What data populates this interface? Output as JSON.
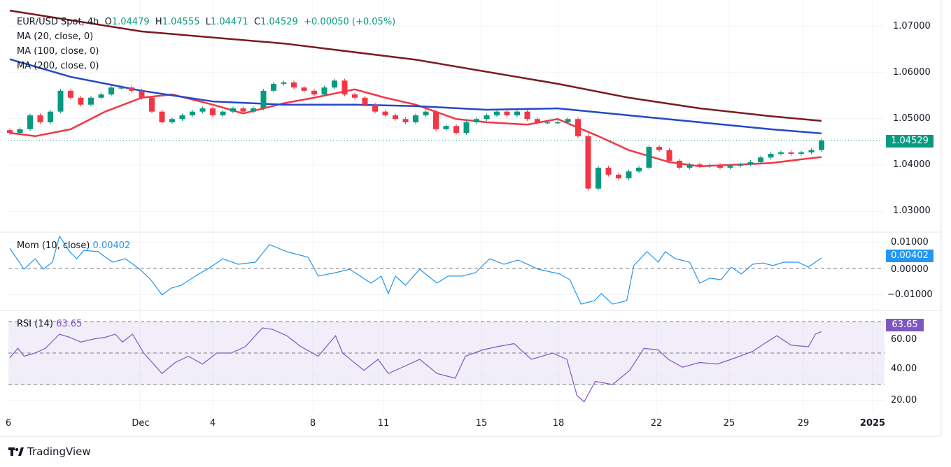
{
  "header": {
    "symbol": "EUR/USD Spot, 4h",
    "open_label": "O",
    "open": "1.04479",
    "high_label": "H",
    "high": "1.04555",
    "low_label": "L",
    "low": "1.04471",
    "close_label": "C",
    "close": "1.04529",
    "change": "+0.00050 (+0.05%)"
  },
  "indicators": {
    "ma20": "MA (20, close, 0)",
    "ma100": "MA (100, close, 0)",
    "ma200": "MA (200, close, 0)",
    "mom_label": "Mom (10, close)",
    "mom_value": "0.00402",
    "rsi_label": "RSI (14)",
    "rsi_value": "63.65"
  },
  "price_axis": [
    "1.07000",
    "1.06000",
    "1.05000",
    "1.04000",
    "1.03000"
  ],
  "price_badge": "1.04529",
  "mom_axis": [
    "0.01000",
    "0.00000",
    "−0.01000"
  ],
  "mom_badge": "0.00402",
  "rsi_axis": [
    "60.00",
    "40.00",
    "20.00"
  ],
  "rsi_badge": "63.65",
  "date_axis": [
    "6",
    "Dec",
    "4",
    "8",
    "11",
    "15",
    "18",
    "22",
    "25",
    "29",
    "2025"
  ],
  "branding": "TradingView",
  "colors": {
    "up": "#089981",
    "down": "#F23645",
    "ma20": "#F23645",
    "ma100": "#2447C9",
    "ma200": "#7B1A1F",
    "mom": "#2196F3",
    "rsi": "#7E57C2"
  },
  "chart_data": [
    {
      "type": "candlestick",
      "title": "EUR/USD Spot, 4h",
      "ylim": [
        1.025,
        1.0735
      ],
      "first_open": 1.0475,
      "closes": [
        1.0469,
        1.0477,
        1.0507,
        1.0492,
        1.0515,
        1.056,
        1.0545,
        1.053,
        1.0545,
        1.0552,
        1.0567,
        1.0567,
        1.056,
        1.0545,
        1.0515,
        1.0492,
        1.0499,
        1.0507,
        1.0515,
        1.0522,
        1.0507,
        1.0515,
        1.0522,
        1.0515,
        1.0522,
        1.056,
        1.0575,
        1.0578,
        1.0567,
        1.056,
        1.0552,
        1.0567,
        1.0582,
        1.0552,
        1.0545,
        1.053,
        1.0515,
        1.0507,
        1.0499,
        1.0492,
        1.0507,
        1.0515,
        1.0477,
        1.0484,
        1.0469,
        1.0492,
        1.0499,
        1.0507,
        1.0515,
        1.0507,
        1.0515,
        1.0499,
        1.0492,
        1.0492,
        1.0492,
        1.0499,
        1.0462,
        1.0349,
        1.0394,
        1.0379,
        1.0371,
        1.0386,
        1.0394,
        1.0439,
        1.0432,
        1.0409,
        1.0394,
        1.0401,
        1.0397,
        1.04,
        1.0394,
        1.0398,
        1.0401,
        1.0406,
        1.0416,
        1.0424,
        1.0427,
        1.0424,
        1.0427,
        1.0432,
        1.04529
      ],
      "series": [
        {
          "name": "MA (20, close, 0)",
          "points": [
            [
              0,
              1.0469
            ],
            [
              2.5,
              1.0462
            ],
            [
              6,
              1.0477
            ],
            [
              9.4,
              1.0515
            ],
            [
              13,
              1.0545
            ],
            [
              16,
              1.0552
            ],
            [
              20,
              1.053
            ],
            [
              23,
              1.0511
            ],
            [
              27,
              1.0533
            ],
            [
              30,
              1.0545
            ],
            [
              34,
              1.0563
            ],
            [
              37,
              1.0545
            ],
            [
              40,
              1.053
            ],
            [
              44,
              1.0499
            ],
            [
              47,
              1.0492
            ],
            [
              51,
              1.0487
            ],
            [
              54,
              1.0499
            ],
            [
              58,
              1.0462
            ],
            [
              61,
              1.0432
            ],
            [
              65,
              1.0406
            ],
            [
              68,
              1.0397
            ],
            [
              72,
              1.0401
            ],
            [
              75,
              1.0404
            ],
            [
              78,
              1.0412
            ],
            [
              80,
              1.0417
            ]
          ]
        },
        {
          "name": "MA (100, close, 0)",
          "points": [
            [
              0,
              1.0628
            ],
            [
              6,
              1.059
            ],
            [
              13,
              1.056
            ],
            [
              20,
              1.0537
            ],
            [
              27,
              1.053
            ],
            [
              34,
              1.053
            ],
            [
              40,
              1.0527
            ],
            [
              47,
              1.0519
            ],
            [
              54,
              1.0522
            ],
            [
              61,
              1.0507
            ],
            [
              68,
              1.0492
            ],
            [
              75,
              1.0477
            ],
            [
              80,
              1.0468
            ]
          ]
        },
        {
          "name": "MA (200, close, 0)",
          "points": [
            [
              0,
              1.0733
            ],
            [
              13,
              1.0688
            ],
            [
              27,
              1.0662
            ],
            [
              40,
              1.0627
            ],
            [
              54,
              1.0575
            ],
            [
              61,
              1.0545
            ],
            [
              68,
              1.0522
            ],
            [
              75,
              1.0505
            ],
            [
              80,
              1.0495
            ]
          ]
        }
      ]
    },
    {
      "type": "line",
      "title": "Mom (10, close)",
      "ylim": [
        -0.0155,
        0.0135
      ],
      "points": [
        [
          0,
          0.0077
        ],
        [
          1.4,
          -0.0003
        ],
        [
          2.5,
          0.0037
        ],
        [
          3.3,
          -0.0003
        ],
        [
          4.2,
          0.0024
        ],
        [
          4.9,
          0.0123
        ],
        [
          5.9,
          0.0064
        ],
        [
          6.6,
          0.0037
        ],
        [
          7.3,
          0.0069
        ],
        [
          8.7,
          0.0064
        ],
        [
          10.1,
          0.0024
        ],
        [
          11.4,
          0.0037
        ],
        [
          12.8,
          -0.0003
        ],
        [
          13.9,
          -0.0043
        ],
        [
          15.0,
          -0.0101
        ],
        [
          15.9,
          -0.0075
        ],
        [
          16.9,
          -0.0064
        ],
        [
          18.3,
          -0.0029
        ],
        [
          19.7,
          0.0003
        ],
        [
          21.0,
          0.0037
        ],
        [
          22.5,
          0.0016
        ],
        [
          24.2,
          0.0024
        ],
        [
          25.6,
          0.0091
        ],
        [
          27.3,
          0.0064
        ],
        [
          29.4,
          0.0043
        ],
        [
          30.4,
          -0.0029
        ],
        [
          32.1,
          -0.0016
        ],
        [
          33.5,
          -0.0003
        ],
        [
          35.6,
          -0.0056
        ],
        [
          36.6,
          -0.0029
        ],
        [
          37.3,
          -0.0096
        ],
        [
          38.0,
          -0.0029
        ],
        [
          39.0,
          -0.0064
        ],
        [
          40.4,
          -0.0003
        ],
        [
          42.1,
          -0.0056
        ],
        [
          43.2,
          -0.0029
        ],
        [
          44.6,
          -0.0029
        ],
        [
          45.9,
          -0.0016
        ],
        [
          47.3,
          0.0037
        ],
        [
          48.7,
          0.0016
        ],
        [
          50.1,
          0.0032
        ],
        [
          52.1,
          -0.0003
        ],
        [
          54.2,
          -0.0021
        ],
        [
          55.2,
          -0.0043
        ],
        [
          56.3,
          -0.0136
        ],
        [
          57.6,
          -0.0123
        ],
        [
          58.3,
          -0.0096
        ],
        [
          59.4,
          -0.0136
        ],
        [
          60.8,
          -0.0123
        ],
        [
          61.5,
          0.0011
        ],
        [
          62.8,
          0.0064
        ],
        [
          63.9,
          0.0024
        ],
        [
          64.6,
          0.0064
        ],
        [
          65.6,
          0.0037
        ],
        [
          67.0,
          0.0024
        ],
        [
          68.0,
          -0.0056
        ],
        [
          69.0,
          -0.0037
        ],
        [
          70.1,
          -0.0043
        ],
        [
          71.1,
          0.0005
        ],
        [
          72.1,
          -0.0021
        ],
        [
          73.2,
          0.0016
        ],
        [
          74.2,
          0.0021
        ],
        [
          75.2,
          0.0011
        ],
        [
          76.3,
          0.0024
        ],
        [
          77.7,
          0.0024
        ],
        [
          78.7,
          0.0005
        ],
        [
          80,
          0.00402
        ]
      ]
    },
    {
      "type": "line",
      "title": "RSI (14)",
      "ylim": [
        15,
        75
      ],
      "bands": [
        30,
        50,
        70
      ],
      "points": [
        [
          0,
          47
        ],
        [
          0.8,
          53
        ],
        [
          1.4,
          48
        ],
        [
          2.5,
          50
        ],
        [
          3.5,
          53
        ],
        [
          4.9,
          62
        ],
        [
          5.9,
          60
        ],
        [
          7.0,
          57
        ],
        [
          8.3,
          59
        ],
        [
          9.4,
          60
        ],
        [
          10.4,
          62
        ],
        [
          11.1,
          57
        ],
        [
          12.1,
          62
        ],
        [
          13.2,
          50
        ],
        [
          15.0,
          37
        ],
        [
          16.3,
          44
        ],
        [
          17.6,
          48
        ],
        [
          19.0,
          43
        ],
        [
          20.4,
          50
        ],
        [
          21.8,
          50
        ],
        [
          23.2,
          54
        ],
        [
          24.9,
          66
        ],
        [
          25.9,
          65
        ],
        [
          27.3,
          61
        ],
        [
          28.7,
          54
        ],
        [
          30.4,
          48
        ],
        [
          32.1,
          61
        ],
        [
          32.8,
          50
        ],
        [
          34.9,
          39
        ],
        [
          36.3,
          46
        ],
        [
          37.3,
          37
        ],
        [
          38.7,
          41
        ],
        [
          40.4,
          46
        ],
        [
          42.1,
          37
        ],
        [
          43.9,
          34
        ],
        [
          44.9,
          48
        ],
        [
          46.6,
          52
        ],
        [
          48.0,
          54
        ],
        [
          49.7,
          56
        ],
        [
          51.4,
          46
        ],
        [
          53.5,
          50
        ],
        [
          54.9,
          46
        ],
        [
          55.9,
          23
        ],
        [
          56.6,
          19
        ],
        [
          57.7,
          32
        ],
        [
          59.4,
          30
        ],
        [
          61.1,
          39
        ],
        [
          62.5,
          53
        ],
        [
          63.9,
          52
        ],
        [
          64.9,
          46
        ],
        [
          66.3,
          41
        ],
        [
          68.0,
          44
        ],
        [
          69.7,
          43
        ],
        [
          71.1,
          46
        ],
        [
          73.2,
          51
        ],
        [
          74.6,
          57
        ],
        [
          75.6,
          61
        ],
        [
          77.0,
          55
        ],
        [
          78.7,
          54
        ],
        [
          79.4,
          62
        ],
        [
          80,
          63.65
        ]
      ]
    }
  ]
}
